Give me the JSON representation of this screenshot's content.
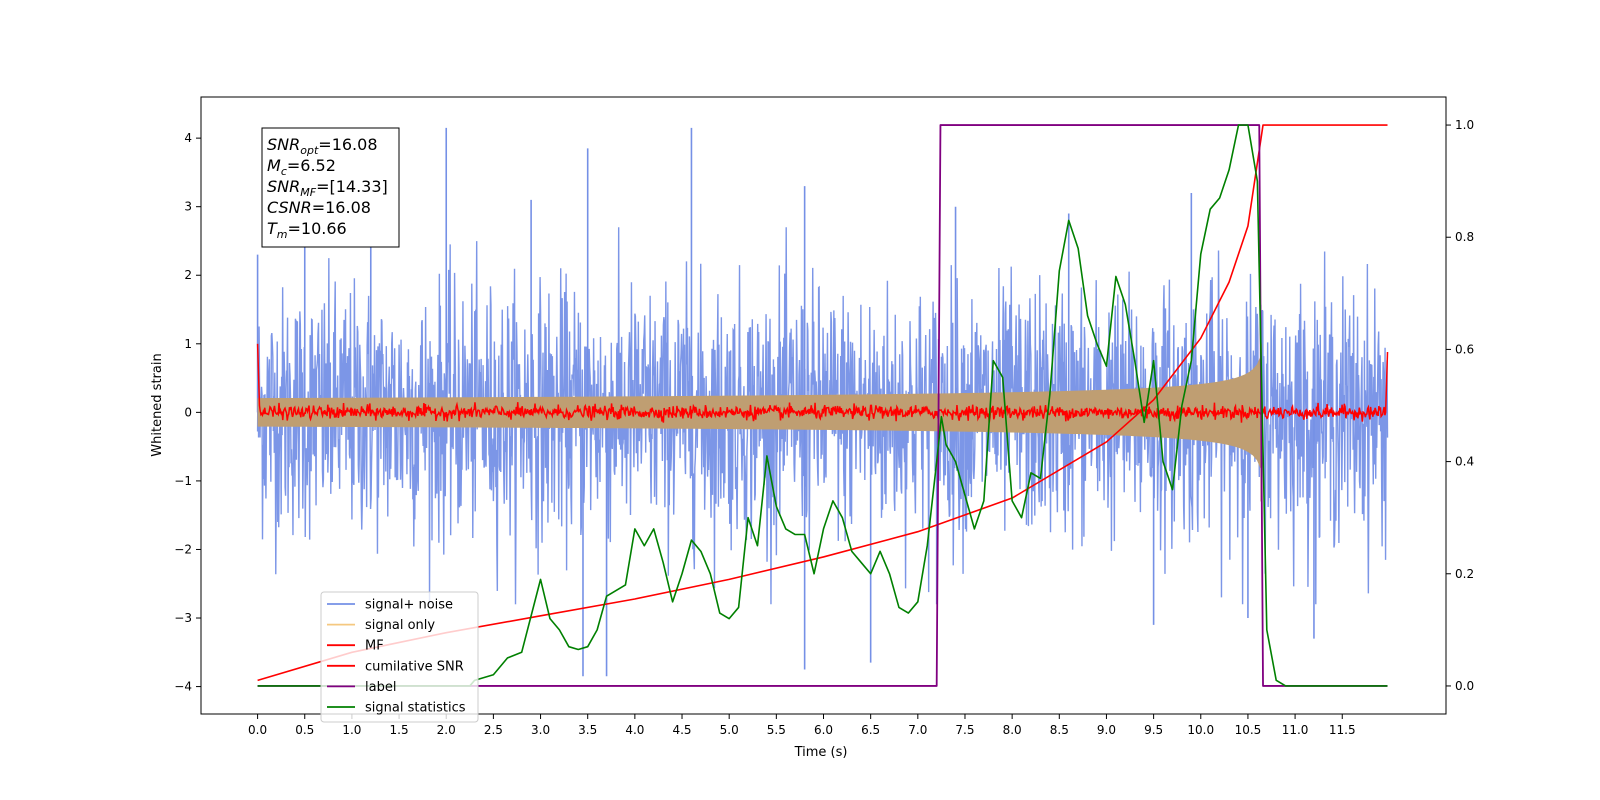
{
  "chart_data": {
    "type": "line",
    "xlabel": "Time (s)",
    "ylabel": "Whitened strain",
    "xlim": [
      -0.6,
      12.6
    ],
    "ylim": [
      -4.4,
      4.6
    ],
    "ylim_right": [
      -0.05,
      1.05
    ],
    "x_ticks": [
      "0.0",
      "0.5",
      "1.0",
      "1.5",
      "2.0",
      "2.5",
      "3.0",
      "3.5",
      "4.0",
      "4.5",
      "5.0",
      "5.5",
      "6.0",
      "6.5",
      "7.0",
      "7.5",
      "8.0",
      "8.5",
      "9.0",
      "9.5",
      "10.0",
      "10.5",
      "11.0",
      "11.5"
    ],
    "y_ticks": [
      "4",
      "3",
      "2",
      "1",
      "0",
      "−1",
      "−2",
      "−3",
      "−4"
    ],
    "y_right_ticks": [
      "1.0",
      "0.8",
      "0.6",
      "0.4",
      "0.2",
      "0.0"
    ],
    "annotation_lines": [
      {
        "label": "SNR",
        "sub": "opt",
        "value": "=16.08"
      },
      {
        "label": "M",
        "sub": "c",
        "value": "=6.52"
      },
      {
        "label": "SNR",
        "sub": "MF",
        "value": "=[14.33]"
      },
      {
        "label": "CSNR",
        "sub": "",
        "value": "=16.08"
      },
      {
        "label": "T",
        "sub": "m",
        "value": "=10.66"
      }
    ],
    "legend": {
      "placement": "lower-left",
      "entries": [
        {
          "name": "signal+ noise",
          "color": "#7590e6"
        },
        {
          "name": "signal only",
          "color": "#f5c880"
        },
        {
          "name": "MF",
          "color": "#ff0000"
        },
        {
          "name": "cumilative SNR",
          "color": "#ff0000"
        },
        {
          "name": "label",
          "color": "#800080"
        },
        {
          "name": "signal statistics",
          "color": "#008000"
        }
      ]
    },
    "series": [
      {
        "name": "signal+ noise",
        "axis": "left",
        "color": "#7590e6",
        "noise_std": 0.9,
        "t_start": 0.0,
        "t_end": 11.98,
        "spikes": [
          [
            0.0,
            2.3
          ],
          [
            0.5,
            2.8
          ],
          [
            1.2,
            2.9
          ],
          [
            2.0,
            4.15
          ],
          [
            2.9,
            3.1
          ],
          [
            3.5,
            3.85
          ],
          [
            4.6,
            4.15
          ],
          [
            5.8,
            3.3
          ],
          [
            7.4,
            3.0
          ],
          [
            8.6,
            2.9
          ],
          [
            9.9,
            3.2
          ],
          [
            3.45,
            -3.85
          ],
          [
            3.7,
            -3.85
          ],
          [
            5.8,
            -3.75
          ],
          [
            6.5,
            -3.65
          ],
          [
            7.2,
            -2.8
          ],
          [
            9.5,
            -3.1
          ],
          [
            10.5,
            -3.0
          ],
          [
            11.2,
            -3.3
          ]
        ]
      },
      {
        "name": "signal only",
        "axis": "left",
        "color": "#f5c880",
        "t_start": 0.0,
        "t_end": 10.66,
        "envelope_amp_at_end": 1.0
      },
      {
        "name": "MF",
        "axis": "left",
        "color": "#ff0000",
        "baseline": 0.0,
        "noise_std": 0.05,
        "start_value": 1.0,
        "end_value": 0.88
      },
      {
        "name": "cumilative SNR",
        "axis": "right",
        "t": [
          0.0,
          1.0,
          2.0,
          3.0,
          4.0,
          5.0,
          6.0,
          7.0,
          8.0,
          9.0,
          9.5,
          10.0,
          10.3,
          10.5,
          10.66,
          11.98
        ],
        "values": [
          0.01,
          0.06,
          0.095,
          0.125,
          0.155,
          0.19,
          0.23,
          0.275,
          0.335,
          0.435,
          0.51,
          0.62,
          0.72,
          0.82,
          1.0,
          1.0
        ]
      },
      {
        "name": "label",
        "axis": "right",
        "t": [
          0.0,
          7.2,
          7.24,
          10.62,
          10.66,
          11.98
        ],
        "values": [
          0.0,
          0.0,
          1.0,
          1.0,
          0.0,
          0.0
        ]
      },
      {
        "name": "signal statistics",
        "axis": "right",
        "t": [
          0.0,
          2.25,
          2.3,
          2.5,
          2.65,
          2.8,
          3.0,
          3.1,
          3.2,
          3.3,
          3.4,
          3.5,
          3.6,
          3.7,
          3.8,
          3.9,
          4.0,
          4.1,
          4.2,
          4.3,
          4.4,
          4.5,
          4.6,
          4.7,
          4.8,
          4.9,
          5.0,
          5.1,
          5.2,
          5.3,
          5.4,
          5.5,
          5.6,
          5.7,
          5.8,
          5.9,
          6.0,
          6.1,
          6.2,
          6.3,
          6.4,
          6.5,
          6.6,
          6.7,
          6.8,
          6.9,
          7.0,
          7.1,
          7.2,
          7.25,
          7.3,
          7.4,
          7.5,
          7.6,
          7.7,
          7.8,
          7.9,
          8.0,
          8.1,
          8.2,
          8.3,
          8.4,
          8.5,
          8.6,
          8.7,
          8.8,
          8.9,
          9.0,
          9.1,
          9.2,
          9.3,
          9.4,
          9.5,
          9.6,
          9.7,
          9.8,
          9.9,
          10.0,
          10.1,
          10.2,
          10.3,
          10.4,
          10.5,
          10.6,
          10.7,
          10.8,
          10.9,
          11.0,
          11.98
        ],
        "values": [
          0.0,
          0.0,
          0.01,
          0.02,
          0.05,
          0.06,
          0.19,
          0.12,
          0.1,
          0.07,
          0.065,
          0.07,
          0.1,
          0.16,
          0.17,
          0.18,
          0.28,
          0.25,
          0.28,
          0.22,
          0.15,
          0.2,
          0.26,
          0.24,
          0.2,
          0.13,
          0.12,
          0.14,
          0.3,
          0.25,
          0.41,
          0.32,
          0.28,
          0.27,
          0.27,
          0.2,
          0.28,
          0.33,
          0.3,
          0.24,
          0.22,
          0.2,
          0.24,
          0.2,
          0.14,
          0.13,
          0.15,
          0.25,
          0.4,
          0.48,
          0.43,
          0.4,
          0.34,
          0.28,
          0.33,
          0.58,
          0.55,
          0.33,
          0.3,
          0.38,
          0.37,
          0.52,
          0.74,
          0.83,
          0.78,
          0.66,
          0.61,
          0.57,
          0.73,
          0.68,
          0.58,
          0.47,
          0.58,
          0.4,
          0.35,
          0.5,
          0.58,
          0.77,
          0.85,
          0.87,
          0.92,
          1.0,
          1.0,
          0.9,
          0.1,
          0.01,
          0.0,
          0.0,
          0.0
        ]
      }
    ]
  }
}
